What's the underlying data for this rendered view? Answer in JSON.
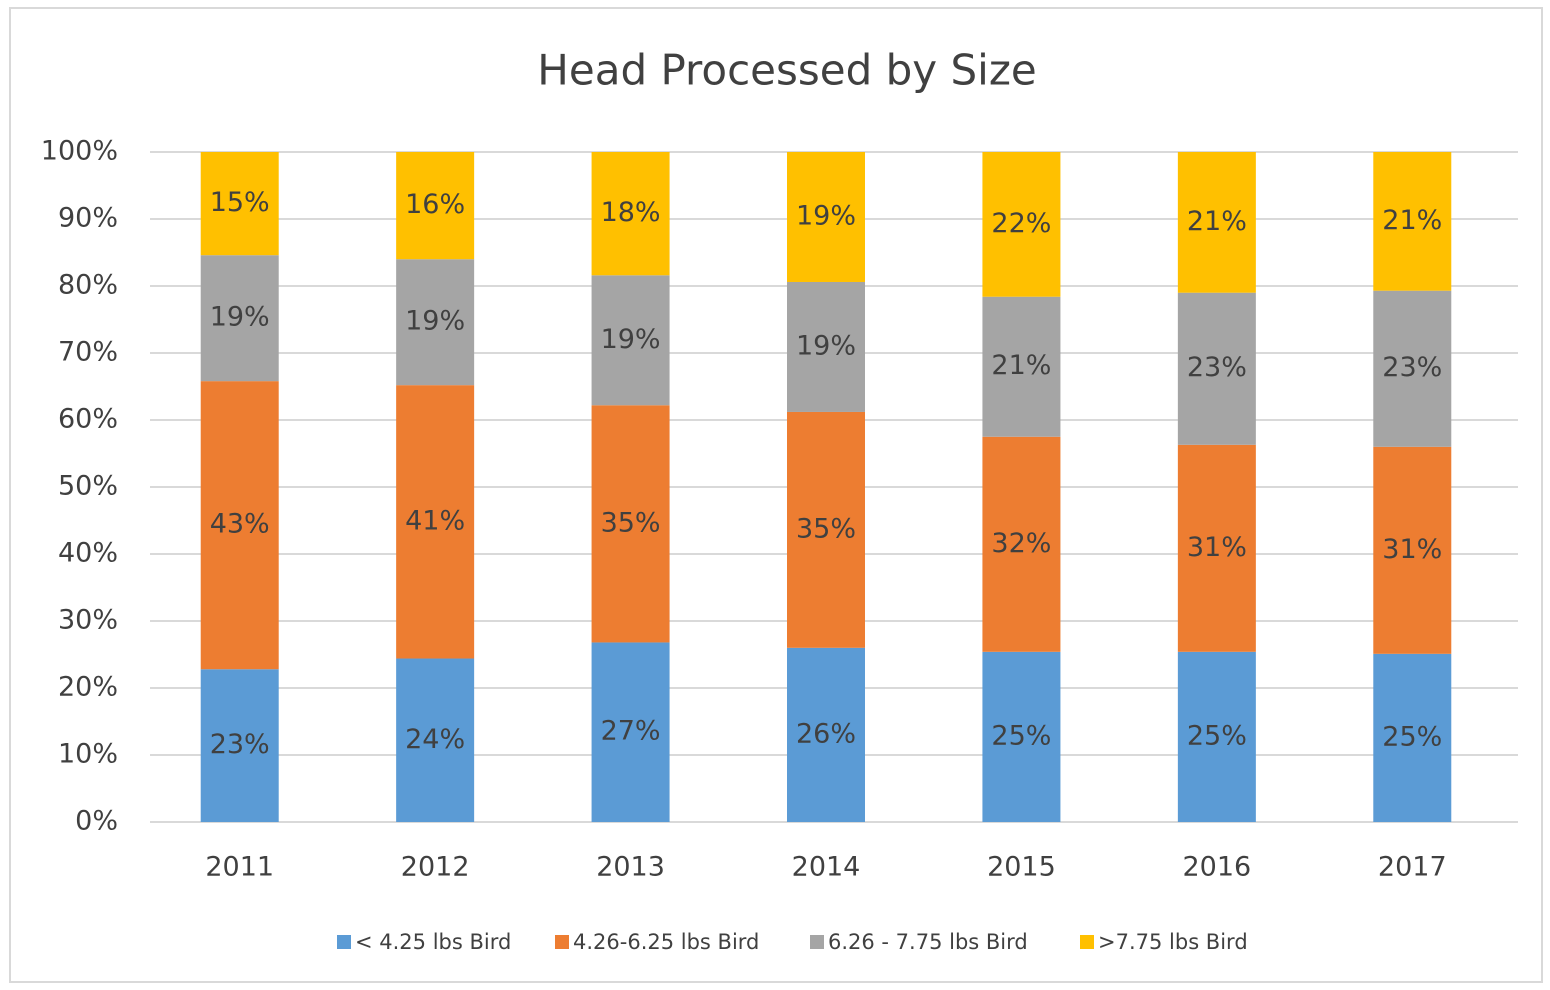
{
  "chart_data": {
    "type": "stacked_bar",
    "title": "Head Processed by Size",
    "categories": [
      "2011",
      "2012",
      "2013",
      "2014",
      "2015",
      "2016",
      "2017"
    ],
    "series": [
      {
        "name": "< 4.25 lbs Bird",
        "color": "#5b9bd5",
        "values": [
          22.8,
          24.4,
          26.8,
          26.0,
          25.4,
          25.4,
          25.1
        ],
        "value_labels": [
          "23%",
          "24%",
          "27%",
          "26%",
          "25%",
          "25%",
          "25%"
        ]
      },
      {
        "name": "4.26-6.25 lbs Bird",
        "color": "#ed7d31",
        "values": [
          43.0,
          40.8,
          35.4,
          35.2,
          32.1,
          30.9,
          30.9
        ],
        "value_labels": [
          "43%",
          "41%",
          "35%",
          "35%",
          "32%",
          "31%",
          "31%"
        ]
      },
      {
        "name": "6.26 - 7.75 lbs Bird",
        "color": "#a5a5a5",
        "values": [
          18.8,
          18.8,
          19.4,
          19.4,
          20.9,
          22.7,
          23.3
        ],
        "value_labels": [
          "19%",
          "19%",
          "19%",
          "19%",
          "21%",
          "23%",
          "23%"
        ]
      },
      {
        "name": ">7.75 lbs Bird",
        "color": "#ffc000",
        "values": [
          15.4,
          16.0,
          18.4,
          19.4,
          21.6,
          21.0,
          20.7
        ],
        "value_labels": [
          "15%",
          "16%",
          "18%",
          "19%",
          "22%",
          "21%",
          "21%"
        ]
      }
    ],
    "ylim": [
      0,
      100
    ],
    "yticks": [
      {
        "value": 0,
        "label": "0%"
      },
      {
        "value": 10,
        "label": "10%"
      },
      {
        "value": 20,
        "label": "20%"
      },
      {
        "value": 30,
        "label": "30%"
      },
      {
        "value": 40,
        "label": "40%"
      },
      {
        "value": 50,
        "label": "50%"
      },
      {
        "value": 60,
        "label": "60%"
      },
      {
        "value": 70,
        "label": "70%"
      },
      {
        "value": 80,
        "label": "80%"
      },
      {
        "value": 90,
        "label": "90%"
      },
      {
        "value": 100,
        "label": "100%"
      }
    ],
    "grid": true,
    "legend": "bottom"
  }
}
